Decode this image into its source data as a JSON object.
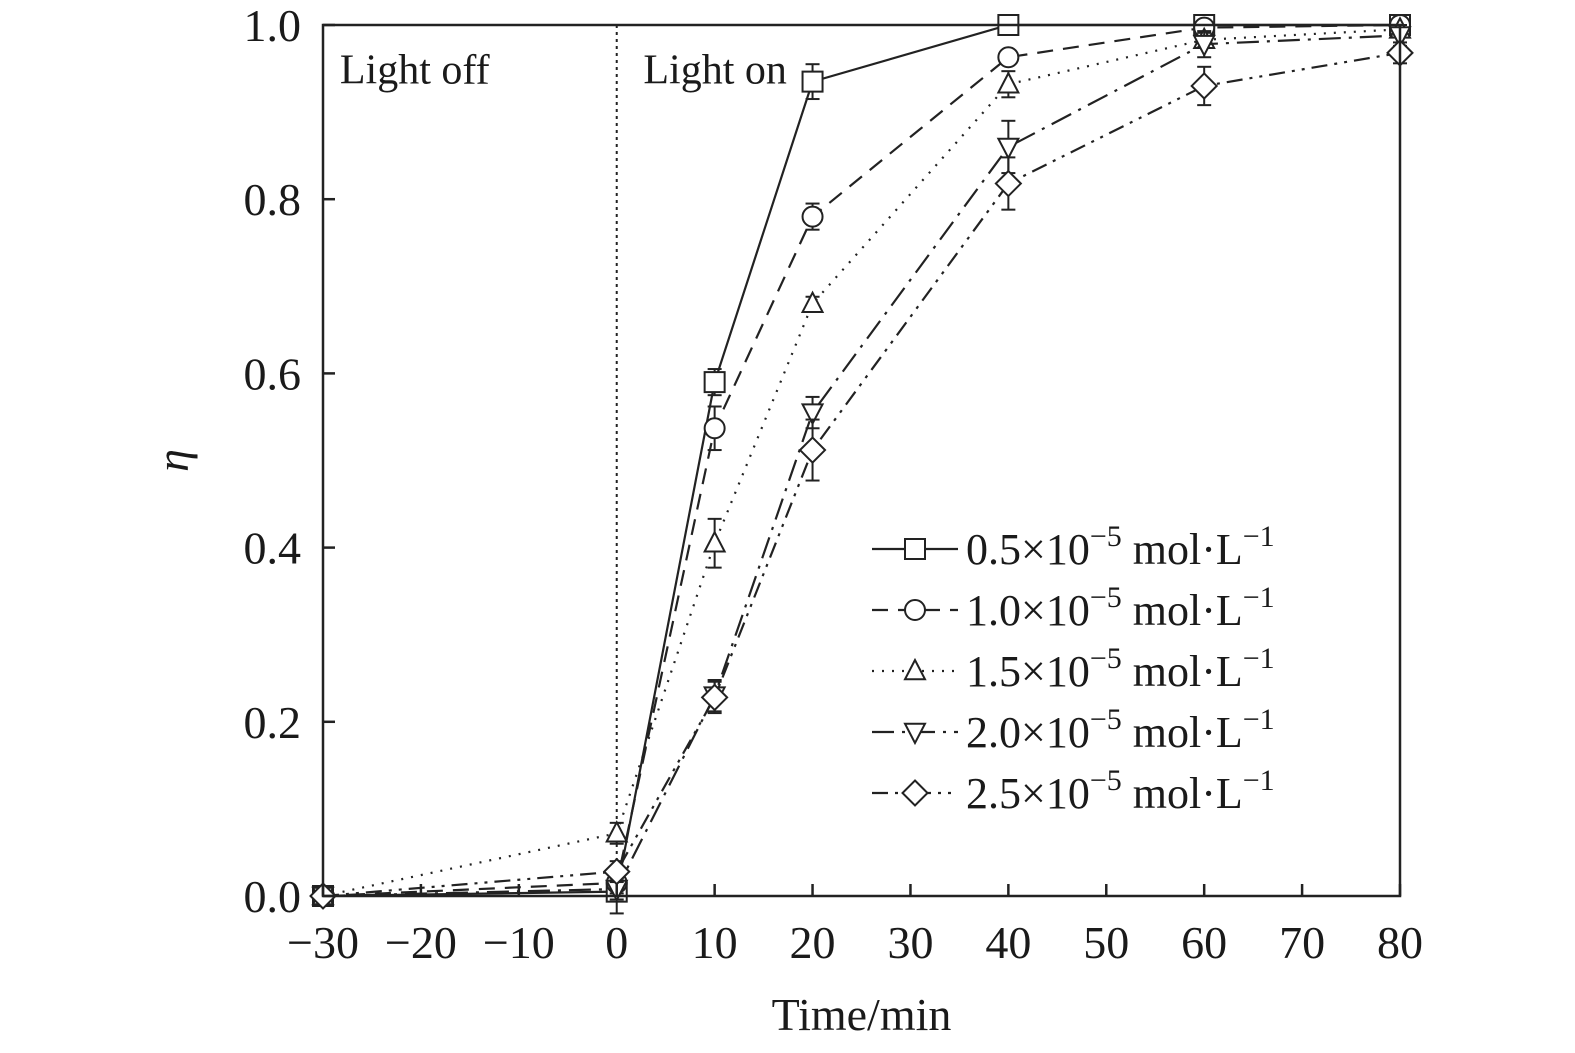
{
  "chart_data": {
    "type": "line",
    "title": "",
    "xlabel": "Time/min",
    "ylabel": "η",
    "xlim": [
      -30,
      80
    ],
    "ylim": [
      0,
      1.0
    ],
    "x_ticks": [
      -30,
      -20,
      -10,
      0,
      10,
      20,
      30,
      40,
      50,
      60,
      70,
      80
    ],
    "x_tick_labels": [
      "−30",
      "−20",
      "−10",
      "0",
      "10",
      "20",
      "30",
      "40",
      "50",
      "60",
      "70",
      "80"
    ],
    "y_ticks": [
      0,
      0.2,
      0.4,
      0.6,
      0.8,
      1.0
    ],
    "y_tick_labels": [
      "0.0",
      "0.2",
      "0.4",
      "0.6",
      "0.8",
      "1.0"
    ],
    "grid": false,
    "legend_position": "bottom-right",
    "annotations": [
      {
        "text": "Light off",
        "x": -29.5,
        "y": 0.94
      },
      {
        "text": "Light on",
        "x": 1.5,
        "y": 0.94
      }
    ],
    "divider_x": 0,
    "series": [
      {
        "name": "0.5×10",
        "exp": "−5",
        "unit": " mol·L",
        "unit_exp": "−1",
        "marker": "square",
        "line": "solid",
        "x": [
          -30,
          0,
          10,
          20,
          40,
          60,
          80
        ],
        "y": [
          0.0,
          0.005,
          0.59,
          0.935,
          1.0,
          1.0,
          1.0
        ],
        "err": [
          0.0,
          0.025,
          0.015,
          0.02,
          0.0,
          0.0,
          0.0
        ]
      },
      {
        "name": "1.0×10",
        "exp": "−5",
        "unit": " mol·L",
        "unit_exp": "−1",
        "marker": "circle",
        "line": "dashed",
        "x": [
          -30,
          0,
          10,
          20,
          40,
          60,
          80
        ],
        "y": [
          0.0,
          0.015,
          0.537,
          0.78,
          0.963,
          0.997,
          1.0
        ],
        "err": [
          0.0,
          0.012,
          0.025,
          0.015,
          0.0,
          0.0,
          0.0
        ]
      },
      {
        "name": "1.5×10",
        "exp": "−5",
        "unit": " mol·L",
        "unit_exp": "−1",
        "marker": "triangle-up",
        "line": "dotted",
        "x": [
          -30,
          0,
          10,
          20,
          40,
          60,
          80
        ],
        "y": [
          0.0,
          0.072,
          0.405,
          0.68,
          0.932,
          0.983,
          0.995
        ],
        "err": [
          0.0,
          0.012,
          0.028,
          0.008,
          0.015,
          0.008,
          0.0
        ]
      },
      {
        "name": "2.0×10",
        "exp": "−5",
        "unit": " mol·L",
        "unit_exp": "−1",
        "marker": "triangle-down",
        "line": "long-dash-dot",
        "x": [
          -30,
          0,
          10,
          20,
          40,
          60,
          80
        ],
        "y": [
          0.0,
          0.008,
          0.23,
          0.555,
          0.86,
          0.978,
          0.988
        ],
        "err": [
          0.0,
          0.012,
          0.018,
          0.018,
          0.03,
          0.015,
          0.012
        ]
      },
      {
        "name": "2.5×10",
        "exp": "−5",
        "unit": " mol·L",
        "unit_exp": "−1",
        "marker": "diamond",
        "line": "dash-dot-dot",
        "x": [
          -30,
          0,
          10,
          20,
          40,
          60,
          80
        ],
        "y": [
          0.0,
          0.028,
          0.228,
          0.512,
          0.818,
          0.93,
          0.968
        ],
        "err": [
          0.0,
          0.012,
          0.018,
          0.035,
          0.03,
          0.022,
          0.012
        ]
      }
    ]
  }
}
